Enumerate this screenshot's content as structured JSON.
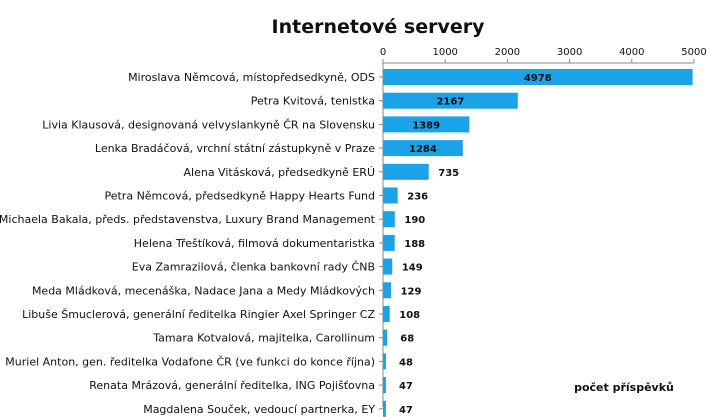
{
  "chart_data": {
    "type": "bar",
    "orientation": "horizontal",
    "title": "Internetové servery",
    "annotation": "počet příspěvků",
    "xlim": [
      0,
      5000
    ],
    "x_ticks": [
      0,
      1000,
      2000,
      3000,
      4000,
      5000
    ],
    "x_axis_position": "top",
    "grid": false,
    "bar_color": "#1aa3e8",
    "categories": [
      "Miroslava Němcová, místopředsedkyně, ODS",
      "Petra Kvitová, tenistka",
      "Livia Klausová, designovaná velvyslankyně ČR na Slovensku",
      "Lenka Bradáčová, vrchní státní zástupkyně v Praze",
      "Alena Vitásková, předsedkyně ERÚ",
      "Petra Němcová, předsedkyně Happy Hearts Fund",
      "Michaela Bakala, předs. představenstva, Luxury Brand Management",
      "Helena Třeštíková, filmová dokumentaristka",
      "Eva Zamrazilová, členka bankovní rady ČNB",
      "Meda Mládková, mecenáška, Nadace Jana a Medy Mládkových",
      "Libuše Šmuclerová, generální ředitelka Ringier Axel Springer CZ",
      "Tamara Kotvalová, majitelka, Carollinum",
      "Muriel Anton, gen. ředitelka Vodafone ČR (ve funkci do konce října)",
      "Renata Mrázová, generální ředitelka, ING Pojišťovna",
      "Magdalena Souček, vedoucí partnerka, EY"
    ],
    "values": [
      4978,
      2167,
      1389,
      1284,
      735,
      236,
      190,
      188,
      149,
      129,
      108,
      68,
      48,
      47,
      47
    ]
  }
}
